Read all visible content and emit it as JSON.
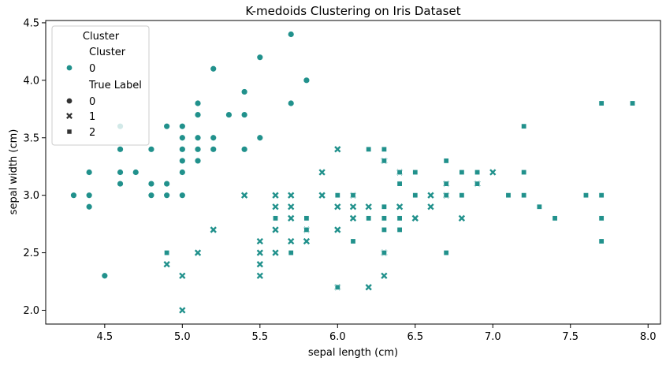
{
  "chart_data": {
    "type": "scatter",
    "title": "K-medoids Clustering on Iris Dataset",
    "xlabel": "sepal length (cm)",
    "ylabel": "sepal width (cm)",
    "xlim": [
      4.12,
      8.08
    ],
    "ylim": [
      1.88,
      4.52
    ],
    "xticks": [
      "4.5",
      "5.0",
      "5.5",
      "6.0",
      "6.5",
      "7.0",
      "7.5",
      "8.0"
    ],
    "yticks": [
      "2.0",
      "2.5",
      "3.0",
      "3.5",
      "4.0",
      "4.5"
    ],
    "grid": false,
    "legend": {
      "placement": "top-left",
      "title": "Cluster",
      "entries": [
        {
          "label": "Cluster",
          "kind": "header"
        },
        {
          "label": "0",
          "kind": "hue",
          "marker": "circle"
        },
        {
          "label": "True Label",
          "kind": "header"
        },
        {
          "label": "0",
          "kind": "style",
          "marker": "circle"
        },
        {
          "label": "1",
          "kind": "style",
          "marker": "x"
        },
        {
          "label": "2",
          "kind": "style",
          "marker": "square"
        }
      ]
    },
    "colors": {
      "cluster_0": "#21918c",
      "legend_gray": "#333333"
    },
    "series": [
      {
        "marker": "circle",
        "points": [
          [
            4.3,
            3.0
          ],
          [
            4.4,
            2.9
          ],
          [
            4.4,
            3.0
          ],
          [
            4.4,
            3.2
          ],
          [
            4.5,
            2.3
          ],
          [
            4.6,
            3.1
          ],
          [
            4.6,
            3.2
          ],
          [
            4.6,
            3.4
          ],
          [
            4.6,
            3.6
          ],
          [
            4.7,
            3.2
          ],
          [
            4.8,
            3.0
          ],
          [
            4.8,
            3.1
          ],
          [
            4.8,
            3.4
          ],
          [
            4.9,
            3.0
          ],
          [
            4.9,
            3.1
          ],
          [
            4.9,
            3.6
          ],
          [
            5.0,
            3.0
          ],
          [
            5.0,
            3.2
          ],
          [
            5.0,
            3.3
          ],
          [
            5.0,
            3.4
          ],
          [
            5.0,
            3.5
          ],
          [
            5.0,
            3.6
          ],
          [
            5.1,
            3.3
          ],
          [
            5.1,
            3.4
          ],
          [
            5.1,
            3.5
          ],
          [
            5.1,
            3.7
          ],
          [
            5.1,
            3.8
          ],
          [
            5.2,
            3.4
          ],
          [
            5.2,
            3.5
          ],
          [
            5.2,
            4.1
          ],
          [
            5.3,
            3.7
          ],
          [
            5.4,
            3.4
          ],
          [
            5.4,
            3.7
          ],
          [
            5.4,
            3.9
          ],
          [
            5.5,
            3.5
          ],
          [
            5.5,
            4.2
          ],
          [
            5.7,
            3.8
          ],
          [
            5.7,
            4.4
          ],
          [
            5.8,
            4.0
          ]
        ]
      },
      {
        "marker": "x",
        "points": [
          [
            4.9,
            2.4
          ],
          [
            5.0,
            2.0
          ],
          [
            5.0,
            2.3
          ],
          [
            5.1,
            2.5
          ],
          [
            5.2,
            2.7
          ],
          [
            5.4,
            3.0
          ],
          [
            5.5,
            2.3
          ],
          [
            5.5,
            2.4
          ],
          [
            5.5,
            2.5
          ],
          [
            5.5,
            2.6
          ],
          [
            5.6,
            2.5
          ],
          [
            5.6,
            2.7
          ],
          [
            5.6,
            2.9
          ],
          [
            5.6,
            3.0
          ],
          [
            5.7,
            2.6
          ],
          [
            5.7,
            2.8
          ],
          [
            5.7,
            2.9
          ],
          [
            5.7,
            3.0
          ],
          [
            5.8,
            2.6
          ],
          [
            5.8,
            2.7
          ],
          [
            5.9,
            3.0
          ],
          [
            5.9,
            3.2
          ],
          [
            6.0,
            2.2
          ],
          [
            6.0,
            2.7
          ],
          [
            6.0,
            2.9
          ],
          [
            6.0,
            3.4
          ],
          [
            6.1,
            2.8
          ],
          [
            6.1,
            2.9
          ],
          [
            6.1,
            3.0
          ],
          [
            6.2,
            2.2
          ],
          [
            6.2,
            2.9
          ],
          [
            6.3,
            2.3
          ],
          [
            6.3,
            2.5
          ],
          [
            6.3,
            3.3
          ],
          [
            6.4,
            2.9
          ],
          [
            6.4,
            3.2
          ],
          [
            6.5,
            2.8
          ],
          [
            6.6,
            2.9
          ],
          [
            6.6,
            3.0
          ],
          [
            6.7,
            3.0
          ],
          [
            6.7,
            3.1
          ],
          [
            6.8,
            2.8
          ],
          [
            6.9,
            3.1
          ],
          [
            7.0,
            3.2
          ]
        ]
      },
      {
        "marker": "square",
        "points": [
          [
            4.9,
            2.5
          ],
          [
            5.6,
            2.8
          ],
          [
            5.7,
            2.5
          ],
          [
            5.8,
            2.7
          ],
          [
            5.8,
            2.8
          ],
          [
            6.0,
            2.2
          ],
          [
            6.0,
            3.0
          ],
          [
            6.1,
            2.6
          ],
          [
            6.1,
            3.0
          ],
          [
            6.2,
            2.8
          ],
          [
            6.2,
            3.4
          ],
          [
            6.3,
            2.5
          ],
          [
            6.3,
            2.7
          ],
          [
            6.3,
            2.8
          ],
          [
            6.3,
            2.9
          ],
          [
            6.3,
            3.3
          ],
          [
            6.3,
            3.4
          ],
          [
            6.4,
            2.7
          ],
          [
            6.4,
            2.8
          ],
          [
            6.4,
            3.1
          ],
          [
            6.4,
            3.2
          ],
          [
            6.5,
            3.0
          ],
          [
            6.5,
            3.2
          ],
          [
            6.7,
            2.5
          ],
          [
            6.7,
            3.0
          ],
          [
            6.7,
            3.1
          ],
          [
            6.7,
            3.3
          ],
          [
            6.8,
            3.0
          ],
          [
            6.8,
            3.2
          ],
          [
            6.9,
            3.1
          ],
          [
            6.9,
            3.2
          ],
          [
            7.1,
            3.0
          ],
          [
            7.2,
            3.0
          ],
          [
            7.2,
            3.2
          ],
          [
            7.2,
            3.6
          ],
          [
            7.3,
            2.9
          ],
          [
            7.4,
            2.8
          ],
          [
            7.6,
            3.0
          ],
          [
            7.7,
            2.6
          ],
          [
            7.7,
            2.8
          ],
          [
            7.7,
            3.0
          ],
          [
            7.7,
            3.8
          ],
          [
            7.9,
            3.8
          ]
        ]
      }
    ]
  }
}
